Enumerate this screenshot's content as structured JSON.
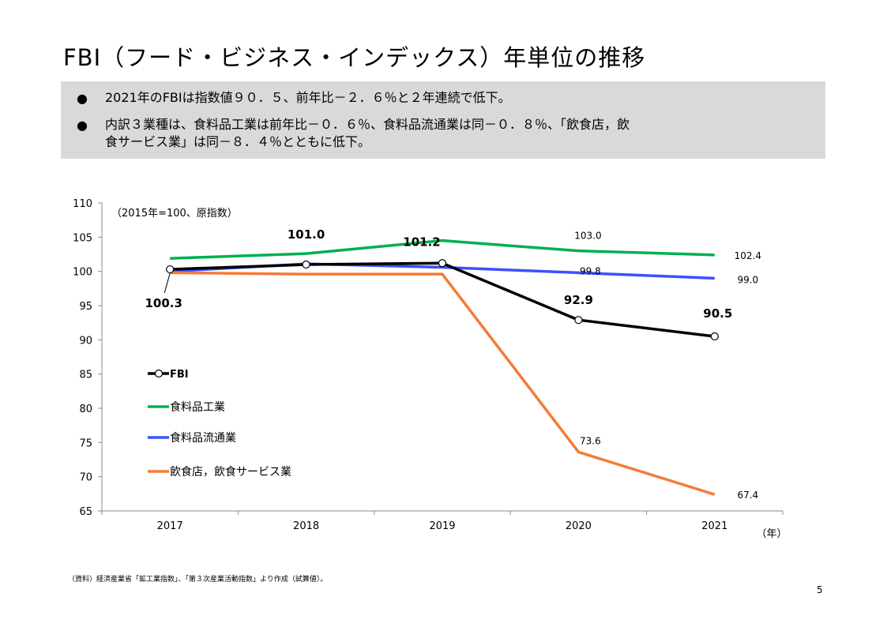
{
  "title": "FBI（フード・ビジネス・インデックス）年単位の推移",
  "summary": {
    "bullet_glyph": "●",
    "line1": "2021年のFBIは指数値９０．５、前年比－２．６％と２年連続で低下。",
    "line2a": "内訳３業種は、食料品工業は前年比－０．６％、食料品流通業は同－０．８％、「飲食店，飲",
    "line2b": "食サービス業」は同－８．４％とともに低下。"
  },
  "chart_data": {
    "type": "line",
    "note": "（2015年=100、原指数）",
    "x_unit": "（年）",
    "categories": [
      "2017",
      "2018",
      "2019",
      "2020",
      "2021"
    ],
    "ylim": [
      65,
      110
    ],
    "yticks": [
      65,
      70,
      75,
      80,
      85,
      90,
      95,
      100,
      105,
      110
    ],
    "series": [
      {
        "name": "食料品工業",
        "color": "#00b050",
        "values": [
          101.9,
          102.6,
          104.5,
          103.0,
          102.4
        ],
        "labels": [
          null,
          null,
          null,
          "103.0",
          "102.4"
        ]
      },
      {
        "name": "食料品流通業",
        "color": "#3c50ff",
        "values": [
          100.0,
          101.1,
          100.6,
          99.8,
          99.0
        ],
        "labels": [
          null,
          null,
          null,
          "99.8",
          "99.0"
        ]
      },
      {
        "name": "飲食店，飲食サービス業",
        "color": "#f57b38",
        "values": [
          99.8,
          99.6,
          99.6,
          73.6,
          67.4
        ],
        "labels": [
          null,
          null,
          null,
          "73.6",
          "67.4"
        ]
      },
      {
        "name": "FBI",
        "color": "#000000",
        "values": [
          100.3,
          101.0,
          101.2,
          92.9,
          90.5
        ],
        "labels": [
          "100.3",
          "101.0",
          "101.2",
          "92.9",
          "90.5"
        ]
      }
    ]
  },
  "footer": {
    "source": "（資料）経済産業省「鉱工業指数」、「第３次産業活動指数」より作成（試算値）。",
    "page": "5"
  }
}
